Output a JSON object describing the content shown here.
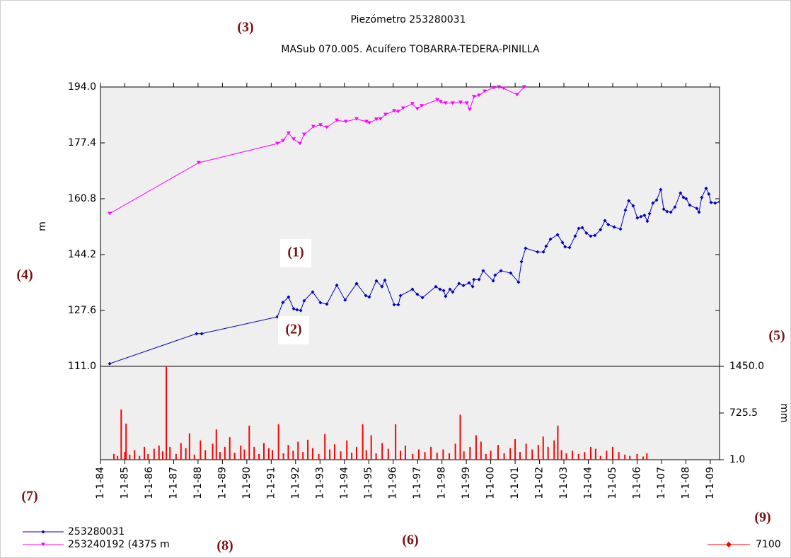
{
  "title": "Piezómetro 253280031",
  "subtitle": "MASub 070.005. Acuífero TOBARRA-TEDERA-PINILLA",
  "annotations": [
    "(1)",
    "(2)",
    "(3)",
    "(4)",
    "(5)",
    "(6)",
    "(7)",
    "(8)",
    "(9)"
  ],
  "chart_data": [
    {
      "type": "line",
      "y_label": "m",
      "xlim": [
        1984,
        2009.38
      ],
      "ylim": [
        111.0,
        194.0
      ],
      "yticks": [
        {
          "value": 111.0,
          "label": "111.0"
        },
        127.6,
        144.2,
        160.8,
        177.4,
        {
          "value": 194.0,
          "label": "194.0"
        }
      ],
      "series": [
        {
          "name": "253280031",
          "color": "#0000c0",
          "marker": "diamond",
          "x": [
            1984.38,
            1987.94,
            1988.15,
            1991.25,
            1991.48,
            1991.71,
            1991.92,
            1992.06,
            1992.21,
            1992.35,
            1992.7,
            1993.02,
            1993.28,
            1993.69,
            1994.03,
            1994.5,
            1994.88,
            1995.02,
            1995.31,
            1995.54,
            1995.66,
            1996.04,
            1996.21,
            1996.3,
            1996.79,
            1996.99,
            1997.2,
            1997.75,
            1997.92,
            1998.07,
            1998.15,
            1998.33,
            1998.44,
            1998.7,
            1998.88,
            1999.11,
            1999.26,
            1999.31,
            1999.52,
            1999.69,
            2000.1,
            2000.18,
            2000.42,
            2000.82,
            2001.14,
            2001.26,
            2001.43,
            2001.92,
            2002.16,
            2002.27,
            2002.45,
            2002.74,
            2002.94,
            2003.05,
            2003.23,
            2003.46,
            2003.61,
            2003.75,
            2003.92,
            2004.1,
            2004.27,
            2004.5,
            2004.68,
            2004.82,
            2005.06,
            2005.32,
            2005.52,
            2005.66,
            2005.84,
            2006.01,
            2006.16,
            2006.3,
            2006.42,
            2006.51,
            2006.65,
            2006.8,
            2006.97,
            2007.09,
            2007.23,
            2007.38,
            2007.55,
            2007.78,
            2007.9,
            2008.01,
            2008.16,
            2008.45,
            2008.54,
            2008.65,
            2008.83,
            2008.94,
            2009.03,
            2009.2,
            2009.38
          ],
          "values": [
            111.8,
            120.7,
            120.7,
            125.7,
            130,
            131.6,
            128.1,
            127.8,
            127.6,
            130.5,
            133.1,
            129.9,
            129.5,
            135.1,
            130.7,
            135.6,
            132,
            131.6,
            136.4,
            134.7,
            136.6,
            129.3,
            129.3,
            132,
            133.9,
            132.4,
            131.4,
            134.7,
            133.9,
            133.5,
            131.8,
            133.9,
            133.1,
            135.6,
            135,
            135.8,
            134.7,
            136.8,
            136.8,
            139.4,
            136.4,
            138.1,
            139.4,
            138.7,
            136,
            142.1,
            146.1,
            145,
            145,
            146.7,
            148.8,
            150.1,
            147.8,
            146.5,
            146.3,
            149.7,
            152,
            152.2,
            150.6,
            149.7,
            149.9,
            151.6,
            154.3,
            153.1,
            152.4,
            151.8,
            157.4,
            160.2,
            158.7,
            155.1,
            155.5,
            155.9,
            154.1,
            156.4,
            159.5,
            160.4,
            163.5,
            157.7,
            157,
            156.8,
            158.3,
            162.5,
            161.2,
            160.8,
            158.9,
            157.9,
            156.8,
            161.2,
            163.9,
            162.2,
            159.7,
            159.5,
            159.9
          ]
        },
        {
          "name": "253240192 (4375 m",
          "color": "#ff00ff",
          "marker": "triangle-down",
          "x": [
            1984.38,
            1988.03,
            1991.25,
            1991.48,
            1991.71,
            1991.92,
            1992.18,
            1992.35,
            1992.73,
            1993.02,
            1993.28,
            1993.69,
            1994.06,
            1994.5,
            1994.9,
            1995.02,
            1995.31,
            1995.48,
            1995.69,
            1996.04,
            1996.21,
            1996.41,
            1996.79,
            1996.99,
            1997.17,
            1997.81,
            1997.95,
            1998.15,
            1998.44,
            1998.76,
            1999.02,
            1999.14,
            1999.31,
            1999.52,
            1999.75,
            2000.13,
            2000.33,
            2000.53,
            2001.08,
            2001.37
          ],
          "values": [
            156.4,
            171.5,
            177.2,
            178,
            180.3,
            178.5,
            177.2,
            179.9,
            182.2,
            182.7,
            182,
            184.1,
            183.7,
            184.5,
            183.7,
            183.3,
            184.4,
            184.5,
            185.8,
            186.9,
            186.7,
            187.7,
            189,
            187.5,
            188.4,
            190.2,
            189.6,
            189.2,
            189.2,
            189.4,
            189.2,
            187.3,
            191.1,
            191.5,
            192.7,
            193.8,
            194,
            193.6,
            191.7,
            194
          ]
        }
      ]
    },
    {
      "type": "bar",
      "y_label": "mm",
      "xlim": [
        1984,
        2009.38
      ],
      "ylim": [
        1.0,
        1450.0
      ],
      "yticks": [
        {
          "value": 1.0,
          "label": "1.0"
        },
        725.5,
        {
          "value": 1450.0,
          "label": "1450.0"
        }
      ],
      "xticks": [
        {
          "value": 1984,
          "label": "1-1-84"
        },
        {
          "value": 1985,
          "label": "1-1-85"
        },
        {
          "value": 1986,
          "label": "1-1-86"
        },
        {
          "value": 1987,
          "label": "1-1-87"
        },
        {
          "value": 1988,
          "label": "1-1-88"
        },
        {
          "value": 1989,
          "label": "1-1-89"
        },
        {
          "value": 1990,
          "label": "1-1-90"
        },
        {
          "value": 1991,
          "label": "1-1-91"
        },
        {
          "value": 1992,
          "label": "1-1-92"
        },
        {
          "value": 1993,
          "label": "1-1-93"
        },
        {
          "value": 1994,
          "label": "1-1-94"
        },
        {
          "value": 1995,
          "label": "1-1-95"
        },
        {
          "value": 1996,
          "label": "1-1-96"
        },
        {
          "value": 1997,
          "label": "1-1-97"
        },
        {
          "value": 1998,
          "label": "1-1-98"
        },
        {
          "value": 1999,
          "label": "1-1-99"
        },
        {
          "value": 2000,
          "label": "1-1-00"
        },
        {
          "value": 2001,
          "label": "1-1-01"
        },
        {
          "value": 2002,
          "label": "1-1-02"
        },
        {
          "value": 2003,
          "label": "1-1-03"
        },
        {
          "value": 2004,
          "label": "1-1-04"
        },
        {
          "value": 2005,
          "label": "1-1-05"
        },
        {
          "value": 2006,
          "label": "1-1-06"
        },
        {
          "value": 2007,
          "label": "1-1-07"
        },
        {
          "value": 2008,
          "label": "1-1-08"
        },
        {
          "value": 2009,
          "label": "1-1-09"
        }
      ],
      "series": [
        {
          "name": "7100",
          "color": "#ff0000",
          "x": [
            1984.55,
            1984.7,
            1984.85,
            1985.0,
            1985.05,
            1985.2,
            1985.4,
            1985.6,
            1985.8,
            1985.95,
            1986.2,
            1986.4,
            1986.55,
            1986.7,
            1986.85,
            1987.1,
            1987.3,
            1987.5,
            1987.65,
            1987.85,
            1988.1,
            1988.3,
            1988.6,
            1988.75,
            1988.9,
            1989.1,
            1989.3,
            1989.5,
            1989.75,
            1989.9,
            1990.1,
            1990.3,
            1990.5,
            1990.7,
            1990.9,
            1991.05,
            1991.3,
            1991.5,
            1991.7,
            1991.9,
            1992.1,
            1992.3,
            1992.5,
            1992.7,
            1992.95,
            1993.2,
            1993.4,
            1993.6,
            1993.85,
            1994.1,
            1994.3,
            1994.5,
            1994.75,
            1994.9,
            1995.1,
            1995.3,
            1995.55,
            1995.8,
            1996.1,
            1996.3,
            1996.5,
            1996.8,
            1997.05,
            1997.3,
            1997.55,
            1997.8,
            1998.05,
            1998.3,
            1998.55,
            1998.75,
            1998.9,
            1999.15,
            1999.4,
            1999.6,
            1999.8,
            2000.0,
            2000.3,
            2000.55,
            2000.8,
            2001.0,
            2001.2,
            2001.45,
            2001.7,
            2001.95,
            2002.15,
            2002.35,
            2002.6,
            2002.75,
            2002.9,
            2003.1,
            2003.35,
            2003.6,
            2003.85,
            2004.1,
            2004.3,
            2004.5,
            2004.75,
            2005.0,
            2005.25,
            2005.5,
            2005.7,
            2006.0,
            2006.25,
            2006.4
          ],
          "values": [
            90,
            60,
            780,
            120,
            560,
            80,
            150,
            60,
            200,
            90,
            170,
            220,
            130,
            1450,
            200,
            90,
            260,
            180,
            410,
            80,
            300,
            150,
            250,
            470,
            120,
            200,
            350,
            110,
            220,
            160,
            530,
            200,
            90,
            260,
            180,
            150,
            550,
            100,
            230,
            140,
            280,
            120,
            310,
            180,
            90,
            400,
            160,
            240,
            130,
            300,
            110,
            200,
            550,
            150,
            380,
            100,
            260,
            170,
            550,
            140,
            220,
            90,
            160,
            120,
            200,
            110,
            160,
            100,
            250,
            700,
            130,
            200,
            380,
            280,
            90,
            140,
            230,
            100,
            180,
            320,
            120,
            250,
            160,
            230,
            360,
            200,
            300,
            530,
            150,
            100,
            140,
            90,
            120,
            200,
            170,
            60,
            140,
            200,
            120,
            80,
            60,
            90,
            50,
            100
          ]
        }
      ]
    }
  ]
}
